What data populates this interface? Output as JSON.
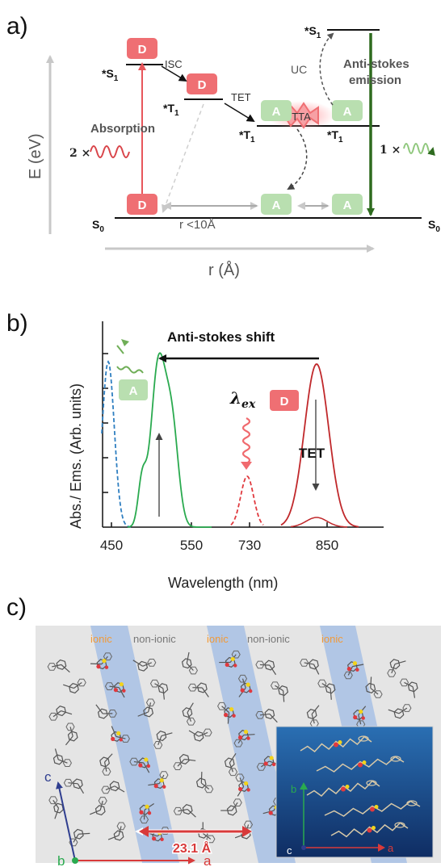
{
  "panel_a": {
    "label": "a)",
    "yaxis": "E (eV)",
    "xaxis": "r (Å)",
    "states": {
      "s1_donor": "*S",
      "t1_donor": "*T",
      "t1_acc_left": "*T",
      "t1_acc_right": "*T",
      "s1_acc": "*S",
      "s0_left": "S",
      "s0_right": "S",
      "sub1": "1",
      "sub0": "0"
    },
    "tags": {
      "donor": "D",
      "acceptor": "A"
    },
    "processes": {
      "isc": "ISC",
      "tet": "TET",
      "tta": "TTA",
      "uc": "UC",
      "absorption": "Absorption",
      "emission_line1": "Anti-stokes",
      "emission_line2": "emission",
      "photons_in": "2 ×",
      "photons_out": "1 ×",
      "distance": "r <10Å"
    }
  },
  "panel_b": {
    "label": "b)",
    "ylabel": "Abs./ Ems.  (Arb. units)",
    "xlabel": "Wavelength  (nm)",
    "shift_label": "Anti-stokes shift",
    "lambda_label": "λ",
    "lambda_sub": "ex",
    "tet_label": "TET",
    "tag_acceptor": "A",
    "tag_donor": "D"
  },
  "chart_data": {
    "type": "line",
    "xticks": [
      "450",
      "550",
      "730",
      "850"
    ],
    "xlabel": "Wavelength  (nm)",
    "ylabel": "Abs./ Ems.  (Arb. units)",
    "series": [
      {
        "style": "dashed",
        "color": "#2f7fc1",
        "peak_x": "450"
      },
      {
        "style": "solid",
        "color": "#2aaa4f",
        "peak_x": "~505"
      },
      {
        "style": "dashed",
        "color": "#e0393e",
        "peak_x": "730"
      },
      {
        "style": "solid",
        "color": "#c0282b",
        "peak_x": "850"
      }
    ]
  },
  "panel_c": {
    "label": "c)",
    "regions": [
      "ionic",
      "non-ionic",
      "ionic",
      "non-ionic",
      "ionic"
    ],
    "distance": "23.1 Å",
    "axes": {
      "a": "a",
      "b": "b",
      "c": "c"
    },
    "inset_axes": {
      "a": "a",
      "b": "b",
      "c": "c"
    }
  },
  "colors": {
    "donor": "#ef6f73",
    "acceptor": "#b9dfb0",
    "emission": "#2e6b1f",
    "absorb": "#e8565b",
    "ionic_label": "#f29a38",
    "stripe": "#9fbbe4",
    "inset_bg": "#1f5a9a"
  }
}
